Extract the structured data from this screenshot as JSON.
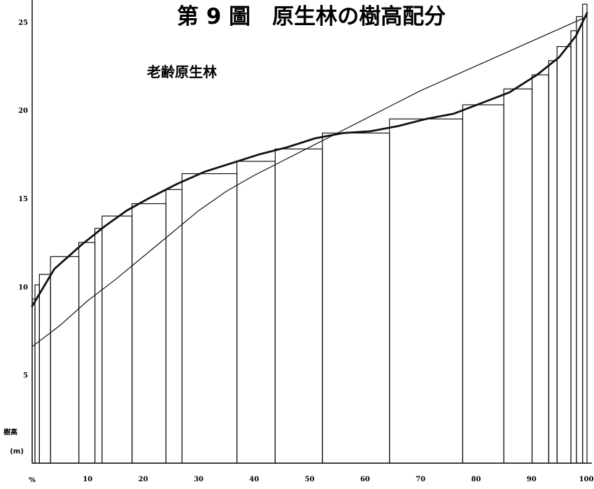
{
  "chart_data": {
    "type": "bar",
    "title": "第 9 圖　原生林の樹高配分",
    "subtitle": "老齢原生林",
    "ylabel": "樹高",
    "yunit": "(m)",
    "xunit": "%",
    "xlim": [
      0,
      100
    ],
    "ylim": [
      0,
      26
    ],
    "xticks": [
      10,
      20,
      30,
      40,
      50,
      60,
      70,
      80,
      90,
      100
    ],
    "yticks": [
      5,
      10,
      15,
      20,
      25
    ],
    "bars": [
      {
        "x0": 0.0,
        "x1": 0.5,
        "height": 9.3
      },
      {
        "x0": 0.5,
        "x1": 1.3,
        "height": 10.1
      },
      {
        "x0": 1.3,
        "x1": 3.3,
        "height": 10.7
      },
      {
        "x0": 3.3,
        "x1": 8.4,
        "height": 11.7
      },
      {
        "x0": 8.4,
        "x1": 11.3,
        "height": 12.5
      },
      {
        "x0": 11.3,
        "x1": 12.6,
        "height": 13.3
      },
      {
        "x0": 12.6,
        "x1": 18.0,
        "height": 14.0
      },
      {
        "x0": 18.0,
        "x1": 24.1,
        "height": 14.7
      },
      {
        "x0": 24.1,
        "x1": 27.0,
        "height": 15.5
      },
      {
        "x0": 27.0,
        "x1": 36.9,
        "height": 16.4
      },
      {
        "x0": 36.9,
        "x1": 43.8,
        "height": 17.1
      },
      {
        "x0": 43.8,
        "x1": 52.3,
        "height": 17.8
      },
      {
        "x0": 52.3,
        "x1": 64.4,
        "height": 18.7
      },
      {
        "x0": 64.4,
        "x1": 77.6,
        "height": 19.5
      },
      {
        "x0": 77.6,
        "x1": 85.0,
        "height": 20.3
      },
      {
        "x0": 85.0,
        "x1": 90.1,
        "height": 21.2
      },
      {
        "x0": 90.1,
        "x1": 93.1,
        "height": 22.0
      },
      {
        "x0": 93.1,
        "x1": 94.6,
        "height": 22.8
      },
      {
        "x0": 94.6,
        "x1": 97.1,
        "height": 23.6
      },
      {
        "x0": 97.1,
        "x1": 98.1,
        "height": 24.5
      },
      {
        "x0": 98.1,
        "x1": 99.2,
        "height": 25.3
      },
      {
        "x0": 99.2,
        "x1": 100.0,
        "height": 26.0
      }
    ],
    "series": [
      {
        "style": "thick-curve",
        "x": [
          0,
          4,
          9,
          13,
          17,
          21,
          26,
          31,
          36,
          41,
          46,
          51,
          56,
          61,
          66,
          71,
          76,
          81,
          86,
          91,
          95,
          98,
          100
        ],
        "y": [
          8.9,
          11.0,
          12.4,
          13.4,
          14.3,
          15.0,
          15.8,
          16.5,
          17.0,
          17.5,
          17.9,
          18.4,
          18.7,
          18.8,
          19.1,
          19.5,
          19.8,
          20.4,
          21.0,
          22.0,
          23.0,
          24.2,
          25.5
        ]
      },
      {
        "style": "thin-curve",
        "x": [
          0,
          5,
          10,
          15,
          20,
          25,
          30,
          35,
          40,
          45,
          50,
          55,
          60,
          65,
          70,
          75,
          80,
          85,
          90,
          95,
          100
        ],
        "y": [
          6.6,
          7.8,
          9.2,
          10.4,
          11.7,
          13.0,
          14.3,
          15.4,
          16.3,
          17.1,
          17.9,
          18.7,
          19.5,
          20.3,
          21.1,
          21.8,
          22.5,
          23.2,
          23.9,
          24.6,
          25.3
        ]
      }
    ]
  }
}
